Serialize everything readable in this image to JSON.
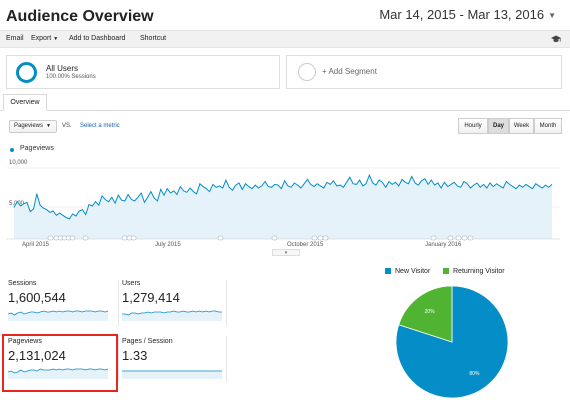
{
  "header": {
    "title": "Audience Overview",
    "date_range": "Mar 14, 2015 - Mar 13, 2016"
  },
  "toolbar": {
    "email": "Email",
    "export": "Export",
    "add_to_dashboard": "Add to Dashboard",
    "shortcut": "Shortcut",
    "icon": "graduation-cap-icon"
  },
  "segments": {
    "active": {
      "title": "All Users",
      "subtitle": "100.00% Sessions"
    },
    "add": "+ Add Segment"
  },
  "tabs": {
    "overview": "Overview"
  },
  "controls": {
    "metric": "Pageviews",
    "vs": "VS.",
    "select_metric": "Select a metric",
    "granularity": [
      "Hourly",
      "Day",
      "Week",
      "Month"
    ],
    "selected_granularity": "Day"
  },
  "colors": {
    "line": "#058dc7",
    "area": "#e6f2fa",
    "new_visitor": "#058dc7",
    "returning_visitor": "#50b432",
    "highlight": "#e8251f"
  },
  "chart_data": [
    {
      "type": "area",
      "series": [
        {
          "name": "Pageviews",
          "values": [
            4400,
            5200,
            4600,
            4900,
            5100,
            3800,
            4200,
            6300,
            4700,
            4300,
            4100,
            3700,
            3900,
            3300,
            3600,
            3300,
            3000,
            2800,
            3500,
            3200,
            3900,
            4100,
            3400,
            4800,
            4600,
            5200,
            4700,
            6000,
            5500,
            5200,
            5800,
            5000,
            6100,
            5400,
            5300,
            6200,
            5500,
            5300,
            5800,
            6400,
            5100,
            5800,
            6600,
            5700,
            5300,
            6900,
            6100,
            7000,
            6400,
            6700,
            6200,
            7300,
            6700,
            6500,
            7100,
            6600,
            6300,
            7700,
            7300,
            7000,
            6600,
            7600,
            7200,
            7400,
            7100,
            8200,
            7200,
            6800,
            7500,
            7800,
            6900,
            7700,
            7300,
            7000,
            7500,
            7100,
            7400,
            8000,
            7300,
            7200,
            7600,
            7500,
            7000,
            8100,
            7400,
            7200,
            7800,
            7500,
            7100,
            7700,
            8300,
            7600,
            7300,
            7700,
            7400,
            7100,
            7900,
            7600,
            8100,
            7400,
            7500,
            7200,
            7900,
            8600,
            7700,
            7600,
            8200,
            7400,
            7700,
            8900,
            7800,
            7500,
            8200,
            7900,
            7200,
            8000,
            7600,
            7900,
            7400,
            8300,
            7900,
            7700,
            8700,
            7800,
            7500,
            8100,
            8400,
            7600,
            8200,
            7500,
            7800,
            7100,
            7900,
            7300,
            7600,
            7900,
            7400,
            7200,
            8000,
            7700,
            7100,
            7500,
            7800,
            7200,
            7600,
            7100,
            7800,
            7300,
            7700,
            7400,
            7100,
            8000,
            7600,
            7300,
            7000,
            7500,
            7200,
            7600,
            7300,
            7000,
            7700,
            7400,
            7100,
            7500,
            7200,
            7600
          ]
        }
      ],
      "x_tick_labels": [
        "April 2015",
        "July 2015",
        "October 2015",
        "January 2016"
      ],
      "y_tick_labels": [
        "5,000",
        "10,000"
      ],
      "ylim": [
        0,
        11000
      ],
      "grid": true,
      "legend": "top-left"
    },
    {
      "type": "pie",
      "categories": [
        "New Visitor",
        "Returning Visitor"
      ],
      "values": [
        80,
        20
      ],
      "data_labels": [
        "80%",
        "20%"
      ],
      "legend": "top"
    }
  ],
  "metrics": [
    {
      "label": "Sessions",
      "value": "1,600,544",
      "spark": [
        5,
        6,
        4,
        6,
        7,
        5,
        6,
        7,
        7,
        6,
        7,
        8,
        7,
        7,
        8,
        7,
        8,
        7,
        8,
        8,
        7,
        8,
        8,
        7,
        8,
        8,
        8,
        7,
        8,
        8,
        7,
        8
      ]
    },
    {
      "label": "Users",
      "value": "1,279,414",
      "spark": [
        5,
        5,
        4,
        6,
        6,
        5,
        6,
        6,
        7,
        6,
        7,
        7,
        7,
        6,
        7,
        7,
        8,
        7,
        7,
        8,
        7,
        7,
        8,
        7,
        8,
        7,
        8,
        7,
        8,
        8,
        7,
        7
      ]
    },
    {
      "label": "Pageviews",
      "value": "2,131,024",
      "spark": [
        5,
        6,
        4,
        5,
        7,
        5,
        6,
        7,
        7,
        6,
        8,
        7,
        7,
        7,
        8,
        7,
        8,
        7,
        8,
        8,
        7,
        8,
        8,
        8,
        7,
        8,
        8,
        7,
        8,
        8,
        7,
        8
      ]
    },
    {
      "label": "Pages / Session",
      "value": "1.33",
      "spark": [
        6,
        6,
        6,
        6,
        6,
        6,
        6,
        6,
        6,
        6,
        6,
        6,
        6,
        6,
        6,
        6,
        6,
        6,
        6,
        6,
        6,
        6,
        6,
        6,
        6,
        6,
        6,
        6,
        6,
        6,
        6,
        6
      ]
    }
  ]
}
